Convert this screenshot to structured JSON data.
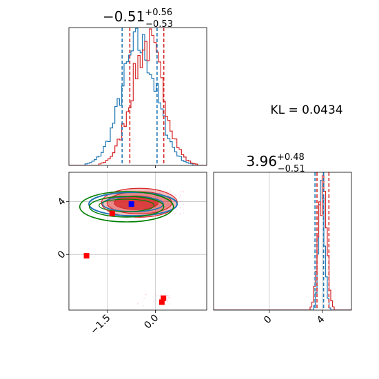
{
  "colors": {
    "blue": "#1f77b4",
    "red": "#d62728",
    "green": "#008000",
    "marker_blue": "#0000ff",
    "marker_red": "#ff0000",
    "grid": "#b0b0b0"
  },
  "titles": {
    "p1": {
      "main": "−0.51",
      "sup": "+0.56",
      "sub": "−0.53"
    },
    "p2": {
      "main": "3.96",
      "sup": "+0.48",
      "sub": "−0.51"
    }
  },
  "kl_text": "KL = 0.0434",
  "chart_data": [
    {
      "type": "histogram",
      "panel": "p1-marginal",
      "xlim": [
        -2.7,
        1.6
      ],
      "series": [
        {
          "name": "",
          "color": "blue",
          "center": -0.51,
          "sigma": 0.55,
          "quantiles": [
            -1.04,
            0.05
          ]
        },
        {
          "name": "",
          "color": "red",
          "center": -0.25,
          "sigma": 0.5,
          "quantiles": [
            -0.8,
            0.26
          ]
        }
      ]
    },
    {
      "type": "scatter",
      "panel": "joint",
      "xlim": [
        -2.7,
        1.6
      ],
      "ylim": [
        -4.2,
        6.2
      ],
      "x_ticks": [
        -1.5,
        0.0
      ],
      "x_tick_labels": [
        "−1.5",
        "0.0"
      ],
      "y_ticks": [
        0,
        4
      ],
      "y_tick_labels": [
        "0",
        "4"
      ],
      "red_markers": [
        {
          "x": -2.15,
          "y": -0.1
        },
        {
          "x": 0.25,
          "y": -3.3
        },
        {
          "x": 0.2,
          "y": -3.6
        },
        {
          "x": -1.35,
          "y": 3.1
        }
      ],
      "blue_marker": {
        "x": -0.75,
        "y": 3.8
      },
      "contours": {
        "red_center": [
          -0.5,
          3.9
        ],
        "blue_center": [
          -0.7,
          3.8
        ],
        "green_center": [
          -0.9,
          3.6
        ]
      }
    },
    {
      "type": "histogram",
      "panel": "p2-marginal",
      "xlim": [
        -4.2,
        6.2
      ],
      "x_ticks": [
        0,
        4
      ],
      "x_tick_labels": [
        "0",
        "4"
      ],
      "series": [
        {
          "name": "",
          "color": "blue",
          "center": 3.96,
          "sigma": 0.22,
          "quantiles": [
            3.45,
            4.1
          ]
        },
        {
          "name": "",
          "color": "red",
          "center": 4.0,
          "sigma": 0.32,
          "quantiles": [
            3.6,
            4.5
          ]
        }
      ]
    }
  ]
}
